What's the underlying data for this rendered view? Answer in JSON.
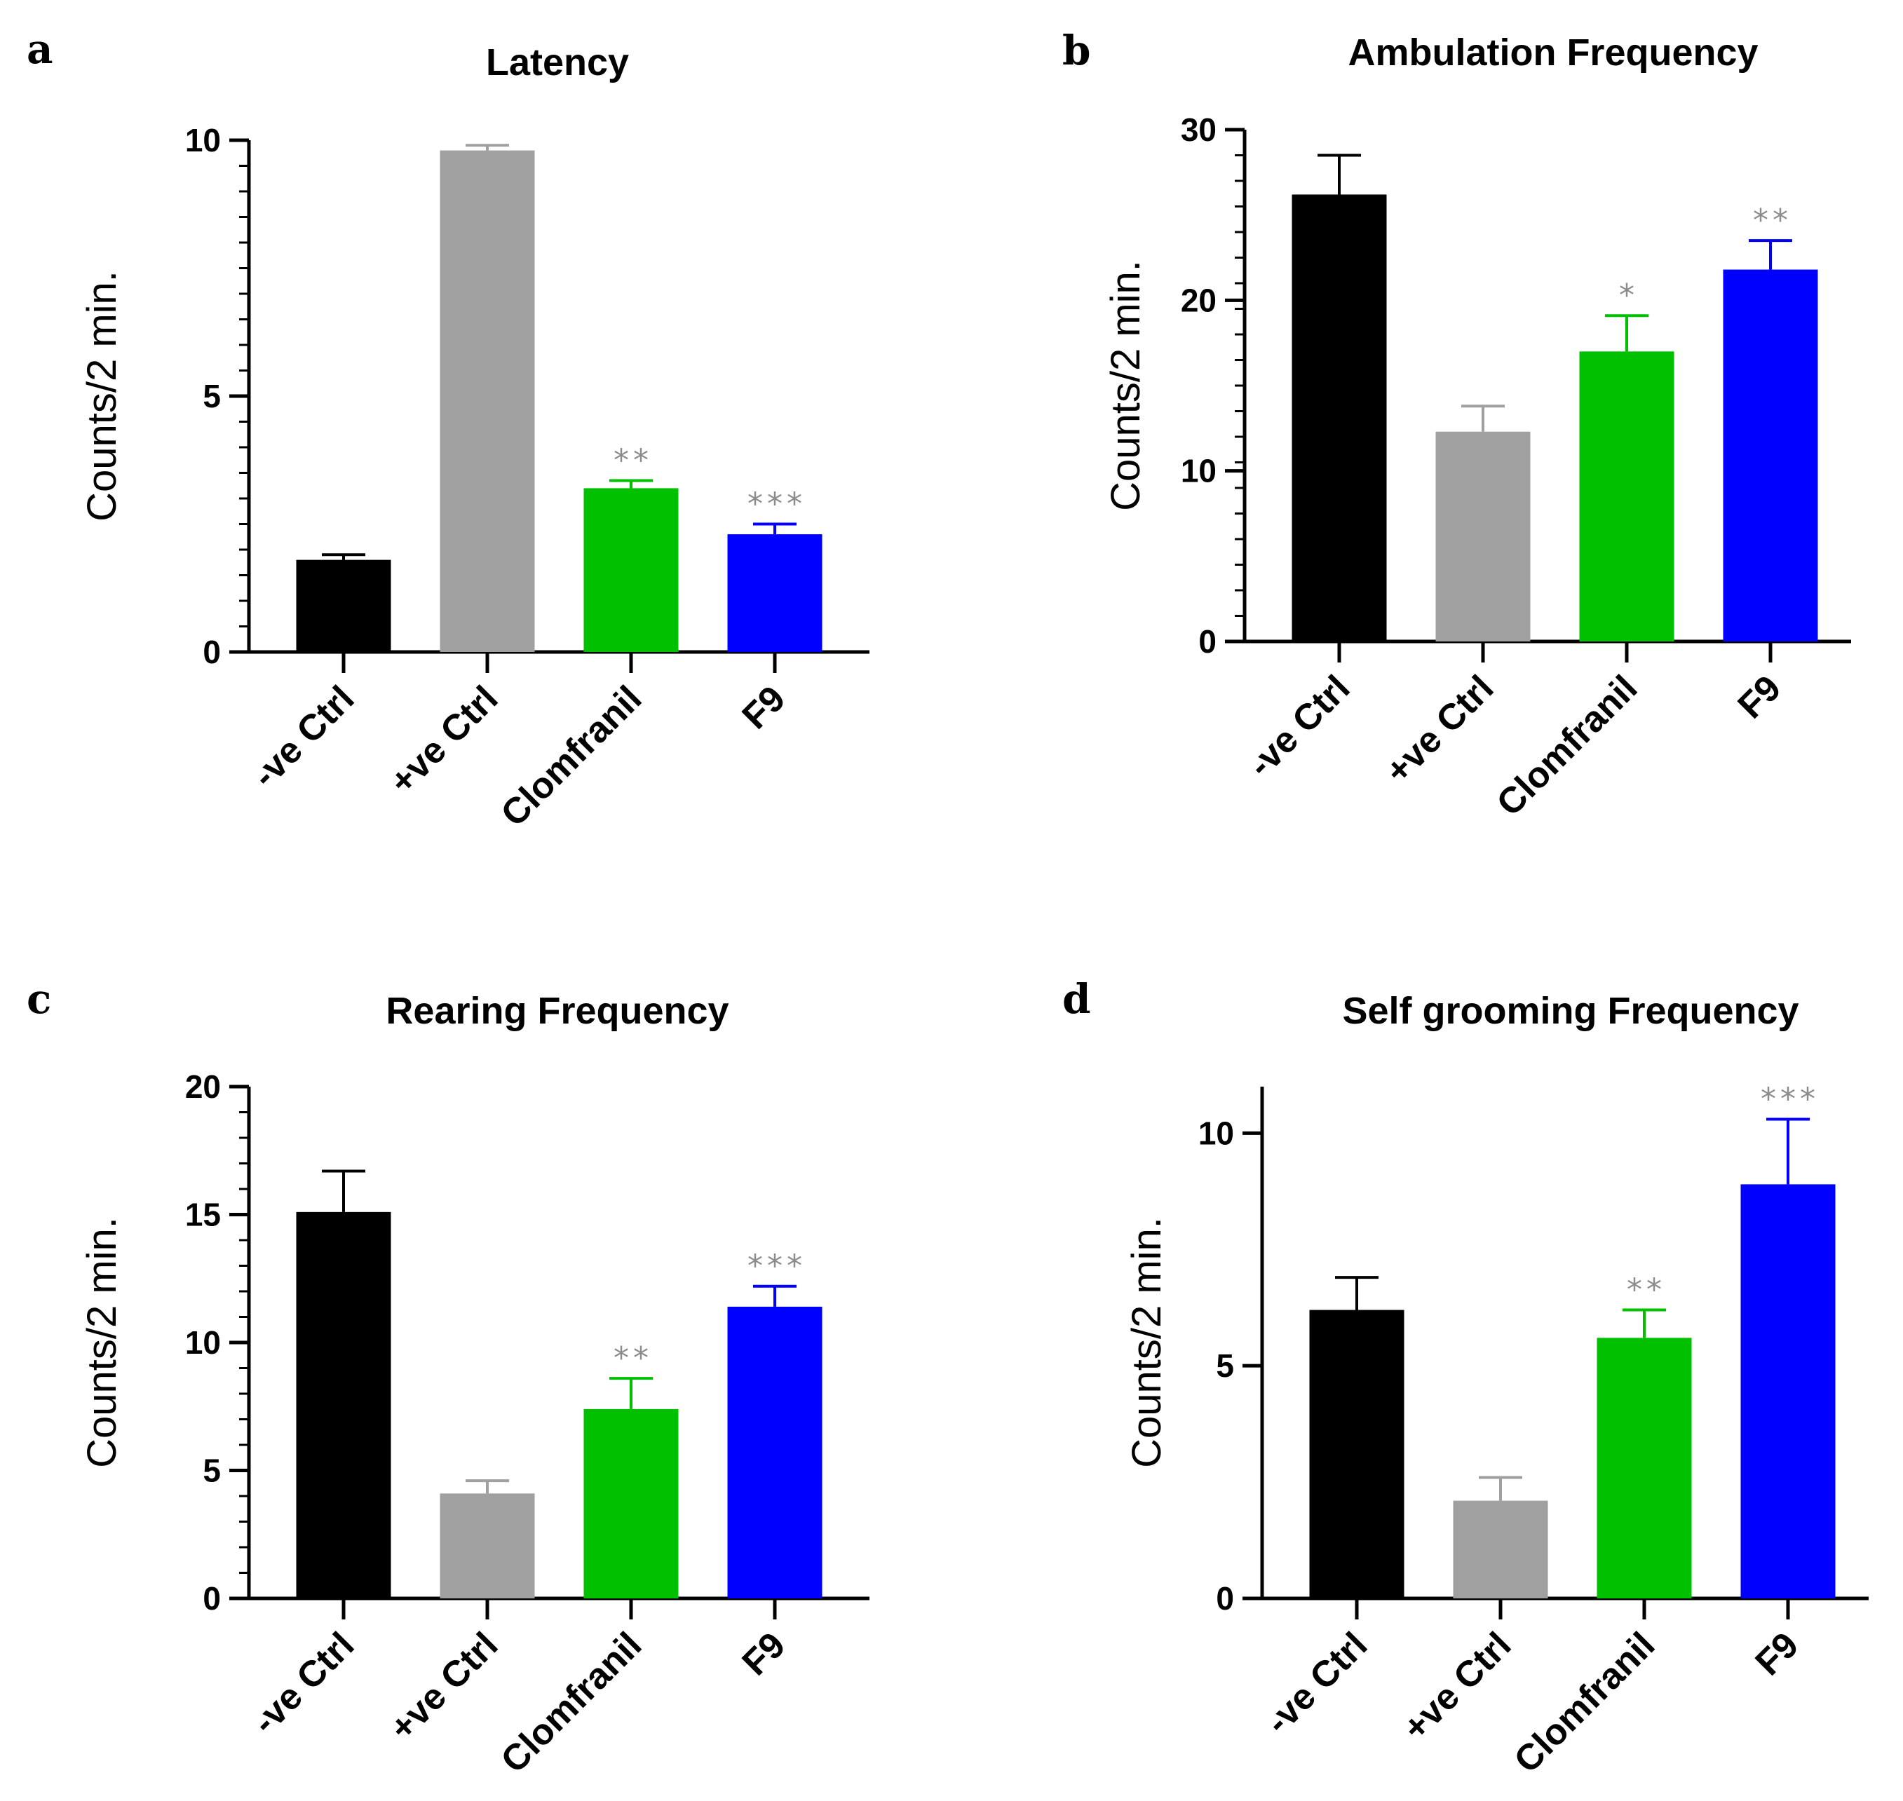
{
  "chart_data": [
    {
      "panel": "a",
      "type": "bar",
      "title": "Latency",
      "ylabel": "Counts/2 min.",
      "xlabel": "",
      "ylim": [
        0,
        10
      ],
      "yticks": [
        0,
        5,
        10
      ],
      "categories": [
        "-ve Ctrl",
        "+ve Ctrl",
        "Clomfranil",
        "F9"
      ],
      "values": [
        1.8,
        9.8,
        3.2,
        2.3
      ],
      "errors": [
        0.1,
        0.1,
        0.15,
        0.2
      ],
      "colors": [
        "#000000",
        "#a0a0a0",
        "#00c000",
        "#0000ff"
      ],
      "significance": [
        "",
        "",
        "**",
        "***"
      ]
    },
    {
      "panel": "b",
      "type": "bar",
      "title": "Ambulation Frequency",
      "ylabel": "Counts/2 min.",
      "xlabel": "",
      "ylim": [
        0,
        30
      ],
      "yticks": [
        0,
        10,
        20,
        30
      ],
      "categories": [
        "-ve Ctrl",
        "+ve Ctrl",
        "Clomfranil",
        "F9"
      ],
      "values": [
        26.2,
        12.3,
        17.0,
        21.8
      ],
      "errors": [
        2.3,
        1.5,
        2.1,
        1.7
      ],
      "colors": [
        "#000000",
        "#a0a0a0",
        "#00c000",
        "#0000ff"
      ],
      "significance": [
        "",
        "",
        "*",
        "**"
      ]
    },
    {
      "panel": "c",
      "type": "bar",
      "title": "Rearing Frequency",
      "ylabel": "Counts/2 min.",
      "xlabel": "",
      "ylim": [
        0,
        20
      ],
      "yticks": [
        0,
        5,
        10,
        15,
        20
      ],
      "categories": [
        "-ve Ctrl",
        "+ve Ctrl",
        "Clomfranil",
        "F9"
      ],
      "values": [
        15.1,
        4.1,
        7.4,
        11.4
      ],
      "errors": [
        1.6,
        0.5,
        1.2,
        0.8
      ],
      "colors": [
        "#000000",
        "#a0a0a0",
        "#00c000",
        "#0000ff"
      ],
      "significance": [
        "",
        "",
        "**",
        "***"
      ]
    },
    {
      "panel": "d",
      "type": "bar",
      "title": "Self grooming Frequency",
      "ylabel": "Counts/2 min.",
      "xlabel": "",
      "ylim": [
        0,
        11
      ],
      "yticks": [
        0,
        5,
        10
      ],
      "categories": [
        "-ve Ctrl",
        "+ve Ctrl",
        "Clomfranil",
        "F9"
      ],
      "values": [
        6.2,
        2.1,
        5.6,
        8.9
      ],
      "errors": [
        0.7,
        0.5,
        0.6,
        1.4
      ],
      "colors": [
        "#000000",
        "#a0a0a0",
        "#00c000",
        "#0000ff"
      ],
      "significance": [
        "",
        "",
        "**",
        "***"
      ]
    }
  ]
}
